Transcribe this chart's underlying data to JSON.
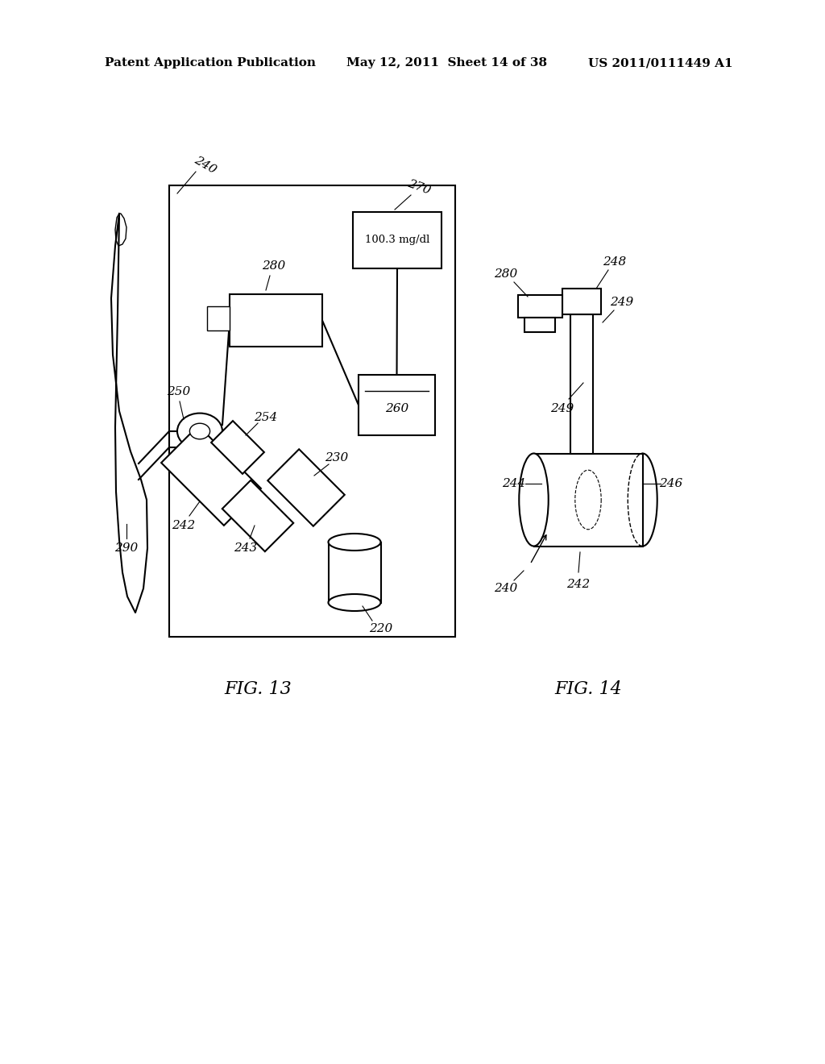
{
  "bg_color": "#ffffff",
  "header_left": "Patent Application Publication",
  "header_center": "May 12, 2011  Sheet 14 of 38",
  "header_right": "US 2011/0111449 A1",
  "fig13_label": "FIG. 13",
  "fig14_label": "FIG. 14",
  "display_value": "100.3 mg/dl"
}
